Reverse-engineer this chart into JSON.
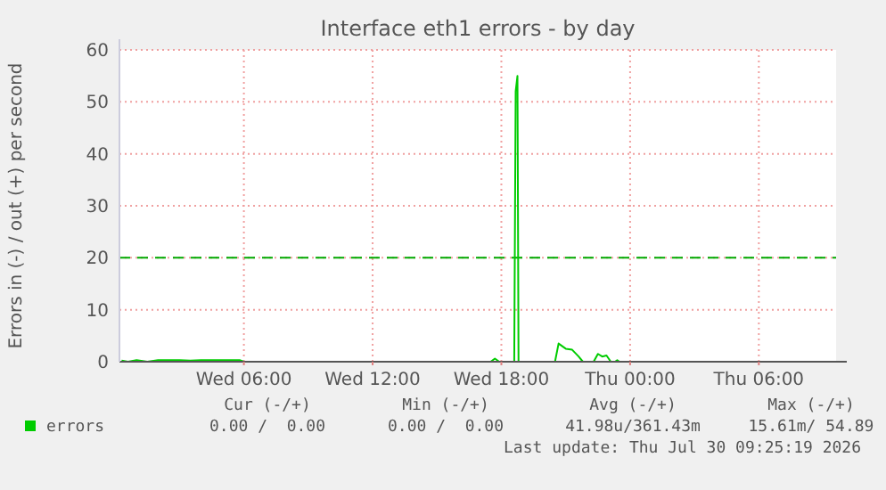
{
  "chart_data": {
    "type": "line",
    "title": "Interface eth1 errors - by day",
    "ylabel": "Errors in (-) / out (+) per second",
    "xlim": [
      "2026-07-29T00:12",
      "2026-07-30T09:36"
    ],
    "ylim": [
      0,
      60
    ],
    "yticks": [
      0,
      10,
      20,
      30,
      40,
      50,
      60
    ],
    "xticks": [
      {
        "value": "2026-07-29T06:00",
        "label": "Wed 06:00"
      },
      {
        "value": "2026-07-29T12:00",
        "label": "Wed 12:00"
      },
      {
        "value": "2026-07-29T18:00",
        "label": "Wed 18:00"
      },
      {
        "value": "2026-07-30T00:00",
        "label": "Thu 00:00"
      },
      {
        "value": "2026-07-30T06:00",
        "label": "Thu 06:00"
      }
    ],
    "grid": true,
    "legend": "bottom left",
    "line_style": "solid",
    "series": [
      {
        "name": "errors",
        "color": "#00cc00",
        "x": [
          "2026-07-29T00:18",
          "2026-07-29T00:36",
          "2026-07-29T01:00",
          "2026-07-29T01:30",
          "2026-07-29T02:00",
          "2026-07-29T02:30",
          "2026-07-29T03:00",
          "2026-07-29T03:30",
          "2026-07-29T04:00",
          "2026-07-29T04:30",
          "2026-07-29T05:00",
          "2026-07-29T05:30",
          "2026-07-29T05:48",
          "2026-07-29T06:00",
          "2026-07-29T10:00",
          "2026-07-29T17:30",
          "2026-07-29T17:42",
          "2026-07-29T17:54",
          "2026-07-29T18:36",
          "2026-07-29T18:40",
          "2026-07-29T18:45",
          "2026-07-29T18:48",
          "2026-07-29T20:30",
          "2026-07-29T20:40",
          "2026-07-29T21:00",
          "2026-07-29T21:18",
          "2026-07-29T21:36",
          "2026-07-29T21:48",
          "2026-07-29T22:18",
          "2026-07-29T22:30",
          "2026-07-29T22:42",
          "2026-07-29T22:54",
          "2026-07-29T23:06",
          "2026-07-29T23:18",
          "2026-07-29T23:24",
          "2026-07-29T23:30",
          "2026-07-30T04:00",
          "2026-07-30T09:30"
        ],
        "values": [
          0.2,
          0,
          0.3,
          0,
          0.3,
          0.3,
          0.3,
          0.2,
          0.3,
          0.3,
          0.3,
          0.3,
          0.3,
          0,
          0,
          0,
          0.6,
          0,
          0,
          52,
          55,
          0,
          0,
          3.5,
          2.5,
          2.3,
          1,
          0,
          0,
          1.5,
          1,
          1.2,
          0,
          0,
          0.3,
          0,
          0,
          0
        ]
      }
    ],
    "ref_lines": [
      {
        "axis": "y",
        "value": 20,
        "color": "#00aa00",
        "line_style": "dashed"
      }
    ],
    "annotations": [
      "Cur (-/+)",
      "Min (-/+)",
      "Avg (-/+)",
      "Max (-/+)",
      "0.00 /  0.00",
      "0.00 /  0.00",
      "41.98u/361.43m",
      "15.61m/ 54.89",
      "Last update: Thu Jul 30 09:25:19 2026"
    ]
  }
}
